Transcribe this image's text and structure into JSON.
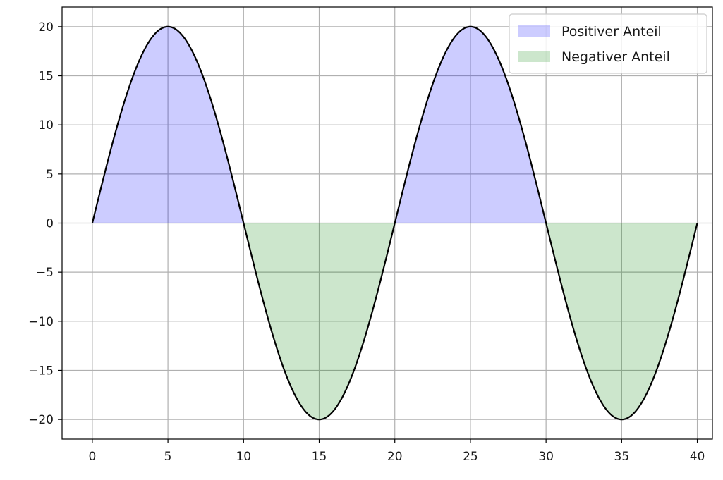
{
  "chart_data": {
    "type": "area",
    "title": "",
    "xlabel": "",
    "ylabel": "",
    "xlim": [
      -2,
      41
    ],
    "ylim": [
      -22,
      22
    ],
    "xticks": [
      0,
      5,
      10,
      15,
      20,
      25,
      30,
      35,
      40
    ],
    "xtick_labels": [
      "0",
      "5",
      "10",
      "15",
      "20",
      "25",
      "30",
      "35",
      "40"
    ],
    "yticks": [
      20,
      15,
      10,
      5,
      0,
      -5,
      -10,
      -15,
      -20
    ],
    "ytick_labels": [
      "20",
      "15",
      "10",
      "5",
      "0",
      "−5",
      "−10",
      "−15",
      "−20"
    ],
    "grid": true,
    "legend_position": "top-right",
    "curve": {
      "function": "20*sin(2*pi*x/20)",
      "x": [
        0,
        2.5,
        5,
        7.5,
        10,
        12.5,
        15,
        17.5,
        20,
        22.5,
        25,
        27.5,
        30,
        32.5,
        35,
        37.5,
        40
      ],
      "y": [
        0,
        14.14,
        20,
        14.14,
        0,
        -14.14,
        -20,
        -14.14,
        0,
        14.14,
        20,
        14.14,
        0,
        -14.14,
        -20,
        -14.14,
        0
      ],
      "color": "#000000"
    },
    "series": [
      {
        "name": "Positiver Anteil",
        "fill": "#0000ff",
        "opacity": 0.2,
        "region": "y > 0"
      },
      {
        "name": "Negativer Anteil",
        "fill": "#008000",
        "opacity": 0.2,
        "region": "y < 0"
      }
    ]
  }
}
